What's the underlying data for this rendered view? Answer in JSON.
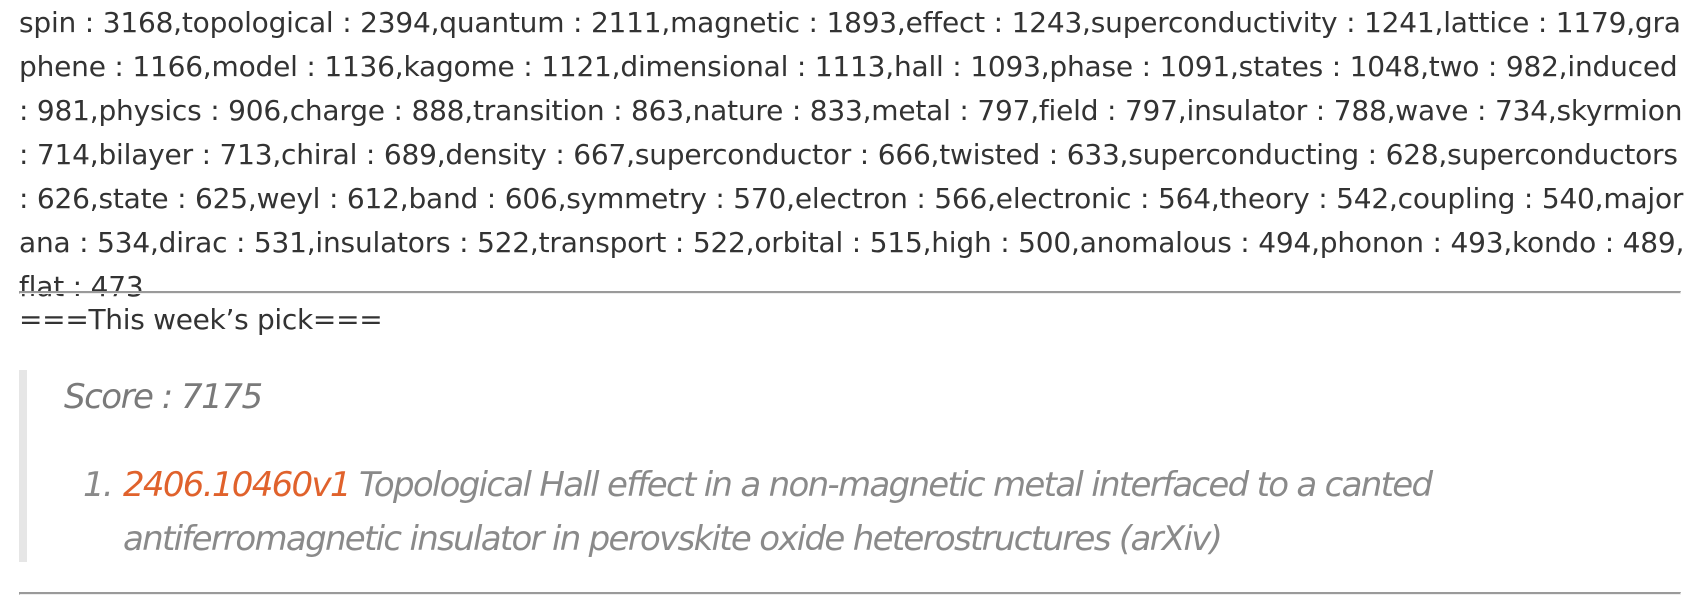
{
  "word_counts": "spin : 3168,topological : 2394,quantum : 2111,magnetic : 1893,effect : 1243,superconductivity : 1241,lattice : 1179,graphene : 1166,model : 1136,kagome : 1121,dimensional : 1113,hall : 1093,phase : 1091,states : 1048,two : 982,induced : 981,physics : 906,charge : 888,transition : 863,nature : 833,metal : 797,field : 797,insulator : 788,wave : 734,skyrmion : 714,bilayer : 713,chiral : 689,density : 667,superconductor : 666,twisted : 633,superconducting : 628,superconductors : 626,state : 625,weyl : 612,band : 606,symmetry : 570,electron : 566,electronic : 564,theory : 542,coupling : 540,majorana : 534,dirac : 531,insulators : 522,transport : 522,orbital : 515,high : 500,anomalous : 494,phonon : 493,kondo : 489,flat : 473",
  "pick_heading": "===This week’s pick===",
  "score": "Score : 7175",
  "picks": [
    {
      "number": "1.",
      "id": "2406.10460v1",
      "title": "Topological Hall effect in a non-magnetic metal interfaced to a canted antiferromagnetic insulator in perovskite oxide heterostructures (arXiv)"
    }
  ],
  "colors": {
    "text": "#333333",
    "muted": "#8a8a8a",
    "link": "#e0622c",
    "rule": "#9a9a9a",
    "quote_bar": "#e6e6e6"
  }
}
